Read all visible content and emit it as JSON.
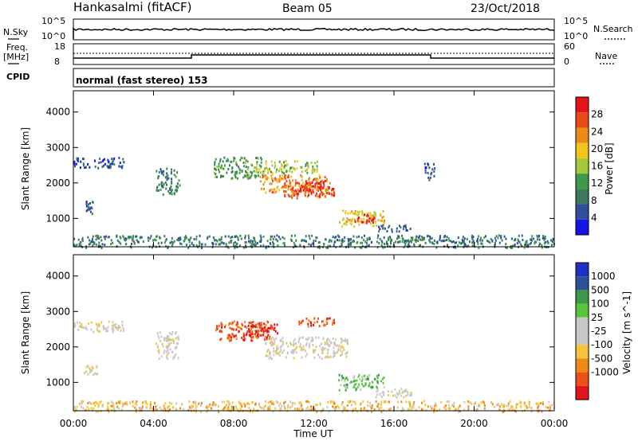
{
  "header": {
    "station": "Hankasalmi (fitACF)",
    "beam": "Beam 05",
    "date": "23/Oct/2018"
  },
  "noise_panel": {
    "left_label": "N.Sky",
    "left_ticks": [
      "10^5",
      "10^0"
    ],
    "right_label": "N.Search",
    "right_ticks": [
      "10^5",
      "10^0"
    ]
  },
  "freq_panel": {
    "left_label": "Freq.",
    "left_unit": "[MHz]",
    "left_ticks": [
      "18",
      "8"
    ],
    "right_label": "Nave",
    "right_ticks": [
      "60",
      "0"
    ]
  },
  "cpid_panel": {
    "label": "CPID",
    "text": "normal (fast stereo) 153"
  },
  "x_axis": {
    "ticks": [
      "00:00",
      "04:00",
      "08:00",
      "12:00",
      "16:00",
      "20:00",
      "00:00"
    ],
    "label": "Time UT"
  },
  "colors": {
    "power_scale": [
      "#1515e6",
      "#2d4f9c",
      "#3c7a5e",
      "#3e9a4a",
      "#a8c83c",
      "#f3c51b",
      "#f08a17",
      "#ea4a18",
      "#e5141a"
    ],
    "velocity_scale": [
      "#e5141a",
      "#ef5016",
      "#f08a17",
      "#f6c43a",
      "#c8c8c8",
      "#c8c8c8",
      "#58c63a",
      "#3c9a4a",
      "#2d4f9c",
      "#1f2fc8"
    ],
    "ground_scatter": "#c0c0c0"
  },
  "chart_data": [
    {
      "type": "heatmap",
      "title": "Power",
      "ylabel": "Slant Range [km]",
      "xlabel": "Time UT",
      "x_range_hours": [
        0,
        24
      ],
      "ylim": [
        200,
        4600
      ],
      "y_ticks": [
        "1000",
        "2000",
        "3000",
        "4000"
      ],
      "colorbar": {
        "label": "Power [dB]",
        "range": [
          0,
          32
        ],
        "ticks": [
          "4",
          "8",
          "12",
          "16",
          "20",
          "24",
          "28"
        ]
      },
      "regions": [
        {
          "t0": 0.0,
          "t1": 2.5,
          "r0": 2450,
          "r1": 2750,
          "level": 1
        },
        {
          "t0": 0.6,
          "t1": 1.0,
          "r0": 1150,
          "r1": 1500,
          "level": 1
        },
        {
          "t0": 4.1,
          "t1": 5.3,
          "r0": 1700,
          "r1": 2450,
          "level": 2
        },
        {
          "t0": 7.0,
          "t1": 9.5,
          "r0": 2150,
          "r1": 2750,
          "level": 3
        },
        {
          "t0": 9.0,
          "t1": 12.2,
          "r0": 2300,
          "r1": 2650,
          "level": 4
        },
        {
          "t0": 9.3,
          "t1": 12.7,
          "r0": 1750,
          "r1": 2250,
          "level": 6
        },
        {
          "t0": 10.5,
          "t1": 13.0,
          "r0": 1600,
          "r1": 2100,
          "level": 7
        },
        {
          "t0": 11.0,
          "t1": 12.5,
          "r0": 1800,
          "r1": 2050,
          "level": 8
        },
        {
          "t0": 13.2,
          "t1": 15.5,
          "r0": 800,
          "r1": 1250,
          "level": 5
        },
        {
          "t0": 14.0,
          "t1": 15.0,
          "r0": 900,
          "r1": 1150,
          "level": 8
        },
        {
          "t0": 15.2,
          "t1": 16.8,
          "r0": 650,
          "r1": 850,
          "level": 1
        },
        {
          "t0": 17.5,
          "t1": 18.0,
          "r0": 2100,
          "r1": 2600,
          "level": 1
        },
        {
          "t0": 0.0,
          "t1": 24.0,
          "r0": 200,
          "r1": 550,
          "level": 2
        }
      ]
    },
    {
      "type": "heatmap",
      "title": "Velocity",
      "ylabel": "Slant Range [km]",
      "xlabel": "Time UT",
      "x_range_hours": [
        0,
        24
      ],
      "ylim": [
        200,
        4600
      ],
      "y_ticks": [
        "1000",
        "2000",
        "3000",
        "4000"
      ],
      "colorbar": {
        "label": "Velocity [m s^-1]",
        "ticks": [
          "1000",
          "500",
          "100",
          "25",
          "-25",
          "-100",
          "-500",
          "-1000"
        ]
      },
      "regions": [
        {
          "t0": 0.0,
          "t1": 2.5,
          "r0": 2450,
          "r1": 2750,
          "level": 4
        },
        {
          "t0": 4.1,
          "t1": 5.3,
          "r0": 1700,
          "r1": 2450,
          "level": 4
        },
        {
          "t0": 7.0,
          "t1": 9.8,
          "r0": 2200,
          "r1": 2750,
          "level": 1
        },
        {
          "t0": 8.5,
          "t1": 10.2,
          "r0": 2350,
          "r1": 2700,
          "level": 0
        },
        {
          "t0": 9.5,
          "t1": 13.8,
          "r0": 1700,
          "r1": 2300,
          "level": 4
        },
        {
          "t0": 11.2,
          "t1": 13.0,
          "r0": 2600,
          "r1": 2850,
          "level": 1
        },
        {
          "t0": 13.2,
          "t1": 15.5,
          "r0": 800,
          "r1": 1250,
          "level": 6
        },
        {
          "t0": 15.0,
          "t1": 17.0,
          "r0": 600,
          "r1": 850,
          "level": 4
        },
        {
          "t0": 0.5,
          "t1": 1.2,
          "r0": 1250,
          "r1": 1500,
          "level": 4
        },
        {
          "t0": 0.0,
          "t1": 24.0,
          "r0": 200,
          "r1": 500,
          "level": 3
        }
      ]
    }
  ]
}
